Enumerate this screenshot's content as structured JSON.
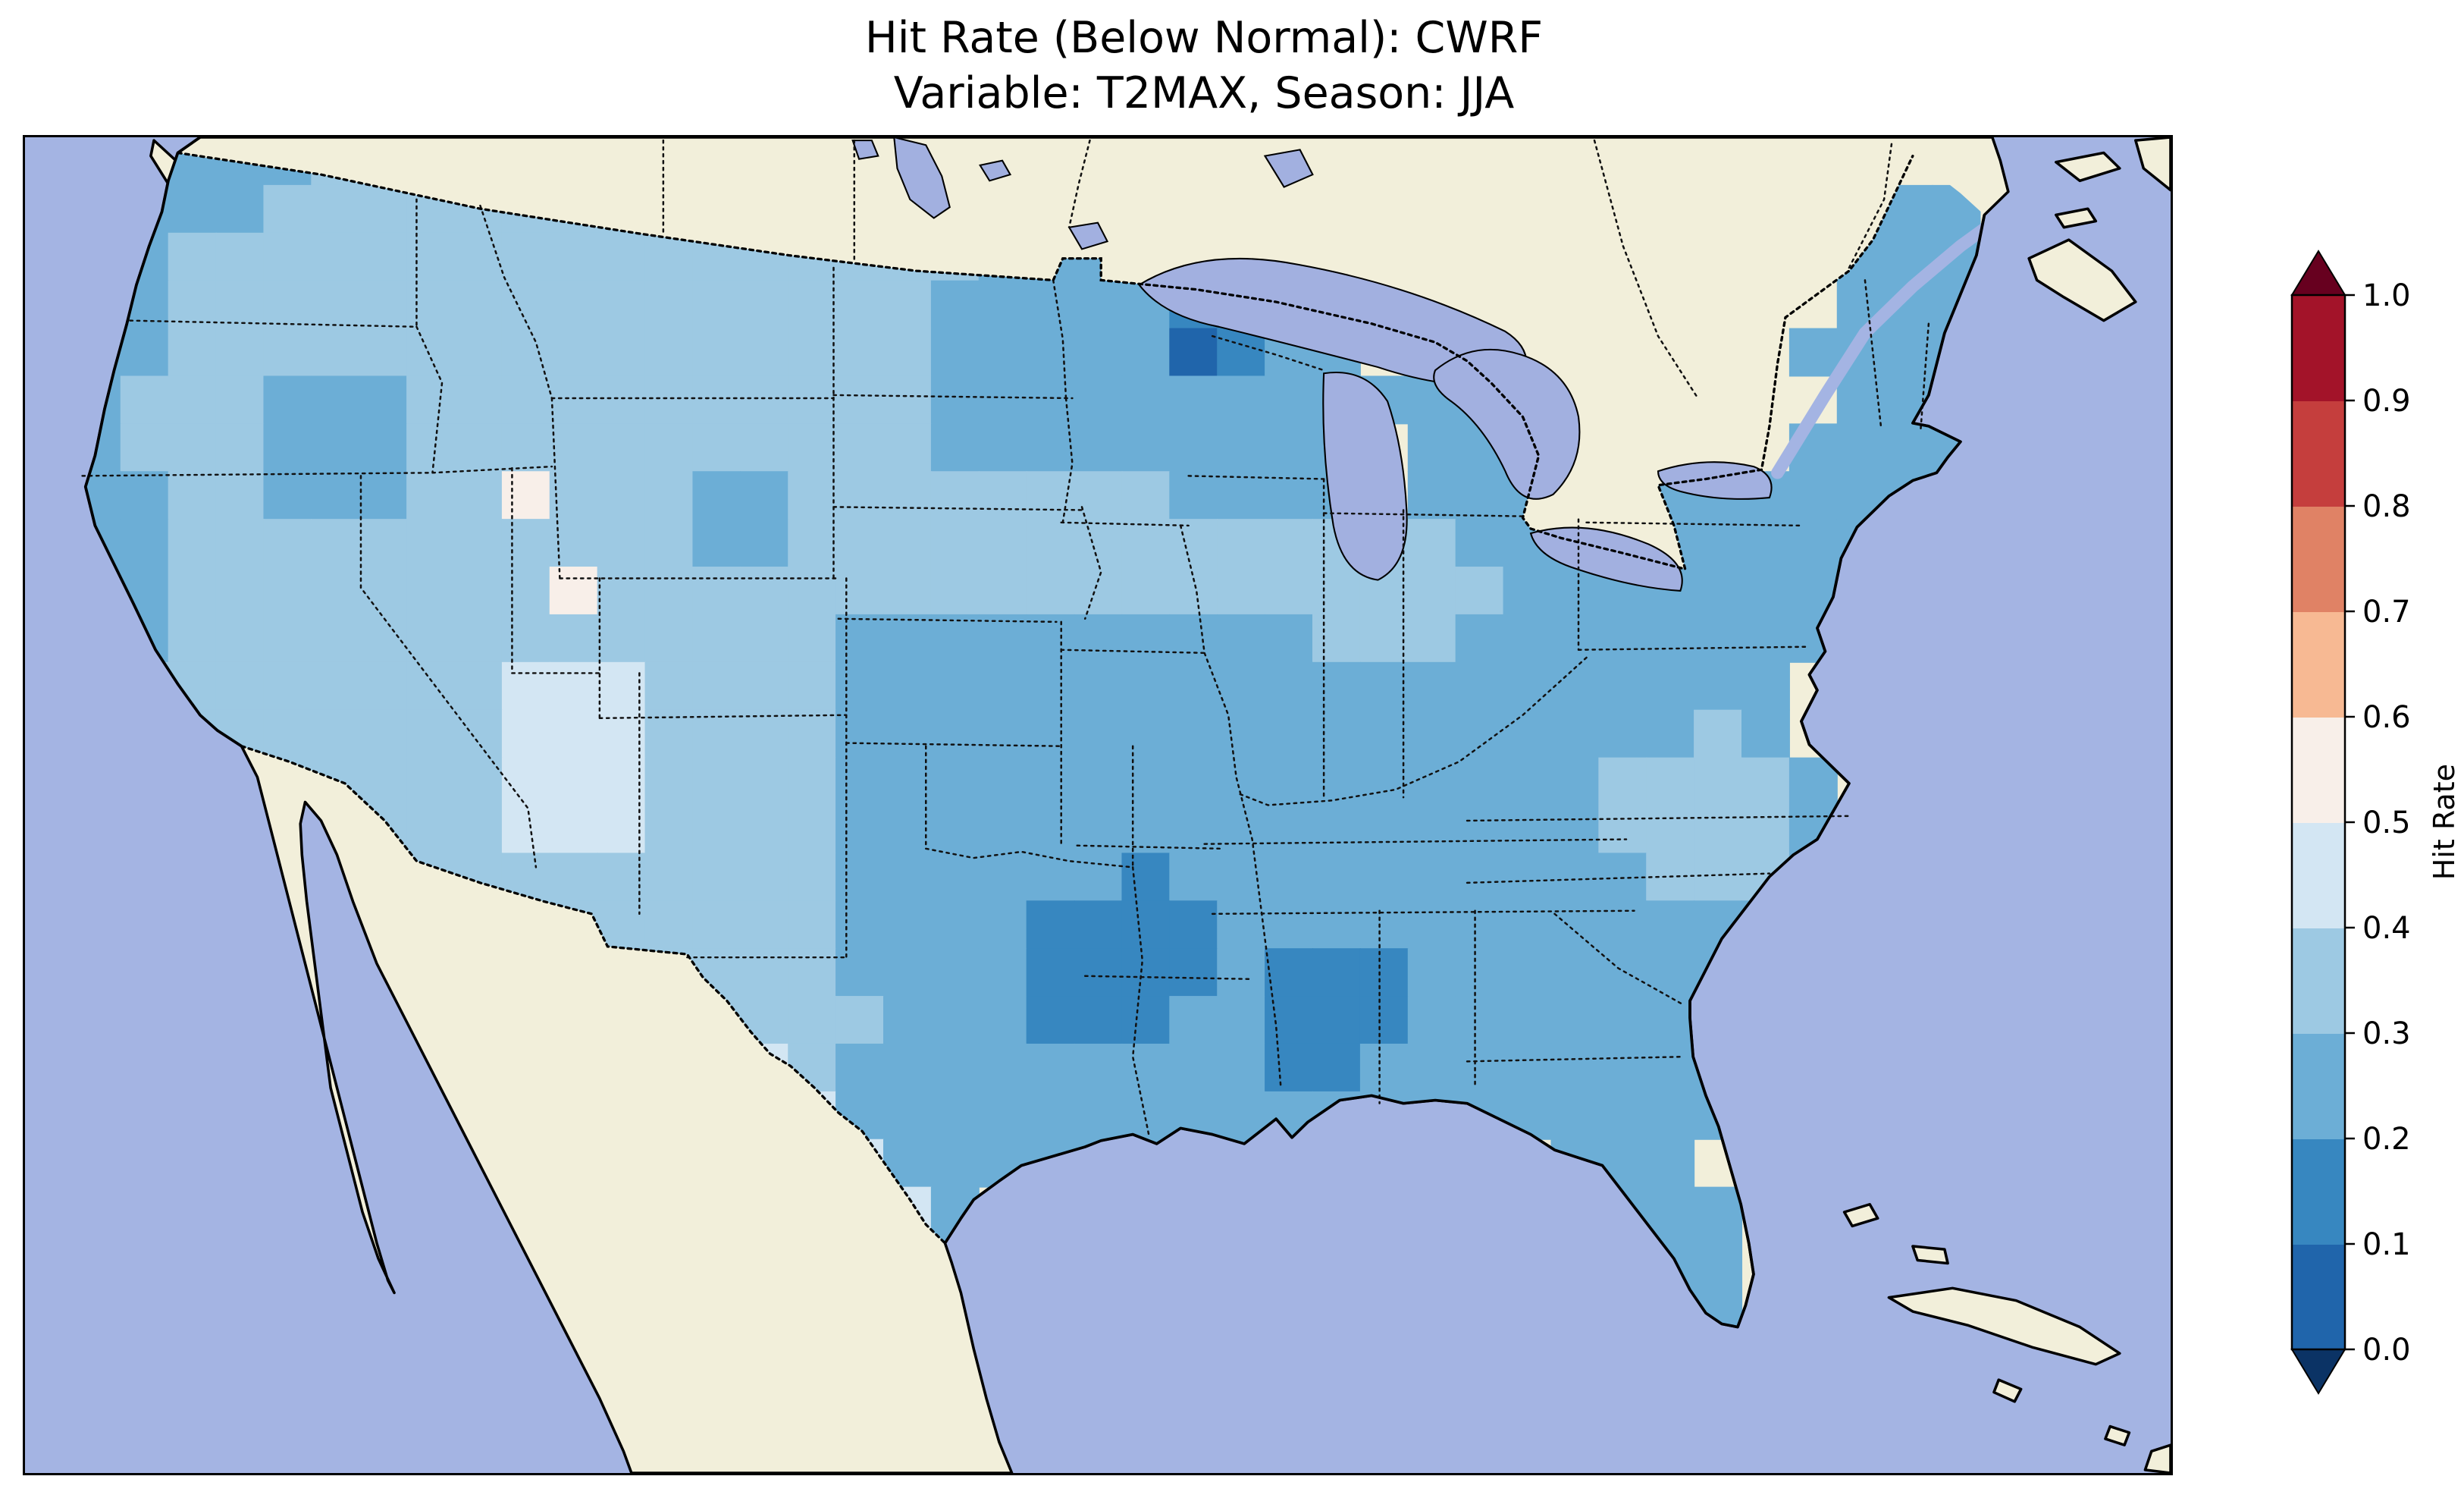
{
  "figure": {
    "background": "#ffffff"
  },
  "title": {
    "line1": "Hit Rate (Below Normal): CWRF",
    "line2": "Variable: T2MAX, Season: JJA"
  },
  "colorbar": {
    "label": "Hit Rate",
    "tick_labels": [
      "0.0",
      "0.1",
      "0.2",
      "0.3",
      "0.4",
      "0.5",
      "0.6",
      "0.7",
      "0.8",
      "0.9",
      "1.0"
    ],
    "bin_colors": [
      "#2065ab",
      "#3787c0",
      "#6caed6",
      "#9dc9e3",
      "#d3e6f3",
      "#f8efe9",
      "#f7b993",
      "#e08265",
      "#c53e3d",
      "#a31329"
    ],
    "under_color": "#0b3365",
    "over_color": "#67001f",
    "extend": "both"
  },
  "map": {
    "ocean_color": "#a4b4e3",
    "land_color": "#f2efda",
    "lake_color": "#a2b0e0",
    "coastline_color": "#000000",
    "border_style": "dotted"
  },
  "chart_data": {
    "type": "heatmap",
    "title": "Hit Rate (Below Normal): CWRF",
    "subtitle": "Variable: T2MAX, Season: JJA",
    "metric": "Hit Rate (Below Normal)",
    "model": "CWRF",
    "variable": "T2MAX",
    "season": "JJA",
    "colorbar_label": "Hit Rate",
    "levels": [
      0.0,
      0.1,
      0.2,
      0.3,
      0.4,
      0.5,
      0.6,
      0.7,
      0.8,
      0.9,
      1.0
    ],
    "grid": {
      "ncols": 45,
      "nrows": 28,
      "legend": {
        ".": null,
        "0": 0.05,
        "1": 0.15,
        "2": 0.25,
        "3": 0.35,
        "4": 0.45,
        "5": 0.55
      },
      "rows": [
        "...22233333333333333332222...............22....",
        "..22233333333333333322222.............222....",
        "..233333333333333333222222............2222...",
        ".22333333333333333322222112...........2222...",
        ".223333333333333333222220122.........22222...",
        ".2333222333333333332222222222222......2222...",
        ".233322233333333333222222222.222.....22222...",
        ".223322233533322333333332222.22222222222.....",
        ".22333333333332233333333333333222222222......",
        ".22333333335333333333333333333322222222.......",
        ".2233333333333333222222222233322222222.......",
        ".233333333444333322222222222222222222........",
        ".233333333444333322222222222222222232........",
        ".....333334443333222222222222222233332.......",
        "......333344433332222222222222222333322.......",
        ".......3333333333222222122222222223332.......",
        ".........3333333322221111222222222222........",
        "...........3333332222111121112222222.........",
        "..............3333222111221112222222.........",
        "..............4432222222221122222222.........",
        "...............442222222222222222222.........",
        "................4422222222......222..........",
        ".................442.............222.........",
        "..................22.............222.........",
        "..................................22.........",
        "...................................2.........",
        ".............................................",
        "............................................."
      ]
    }
  }
}
